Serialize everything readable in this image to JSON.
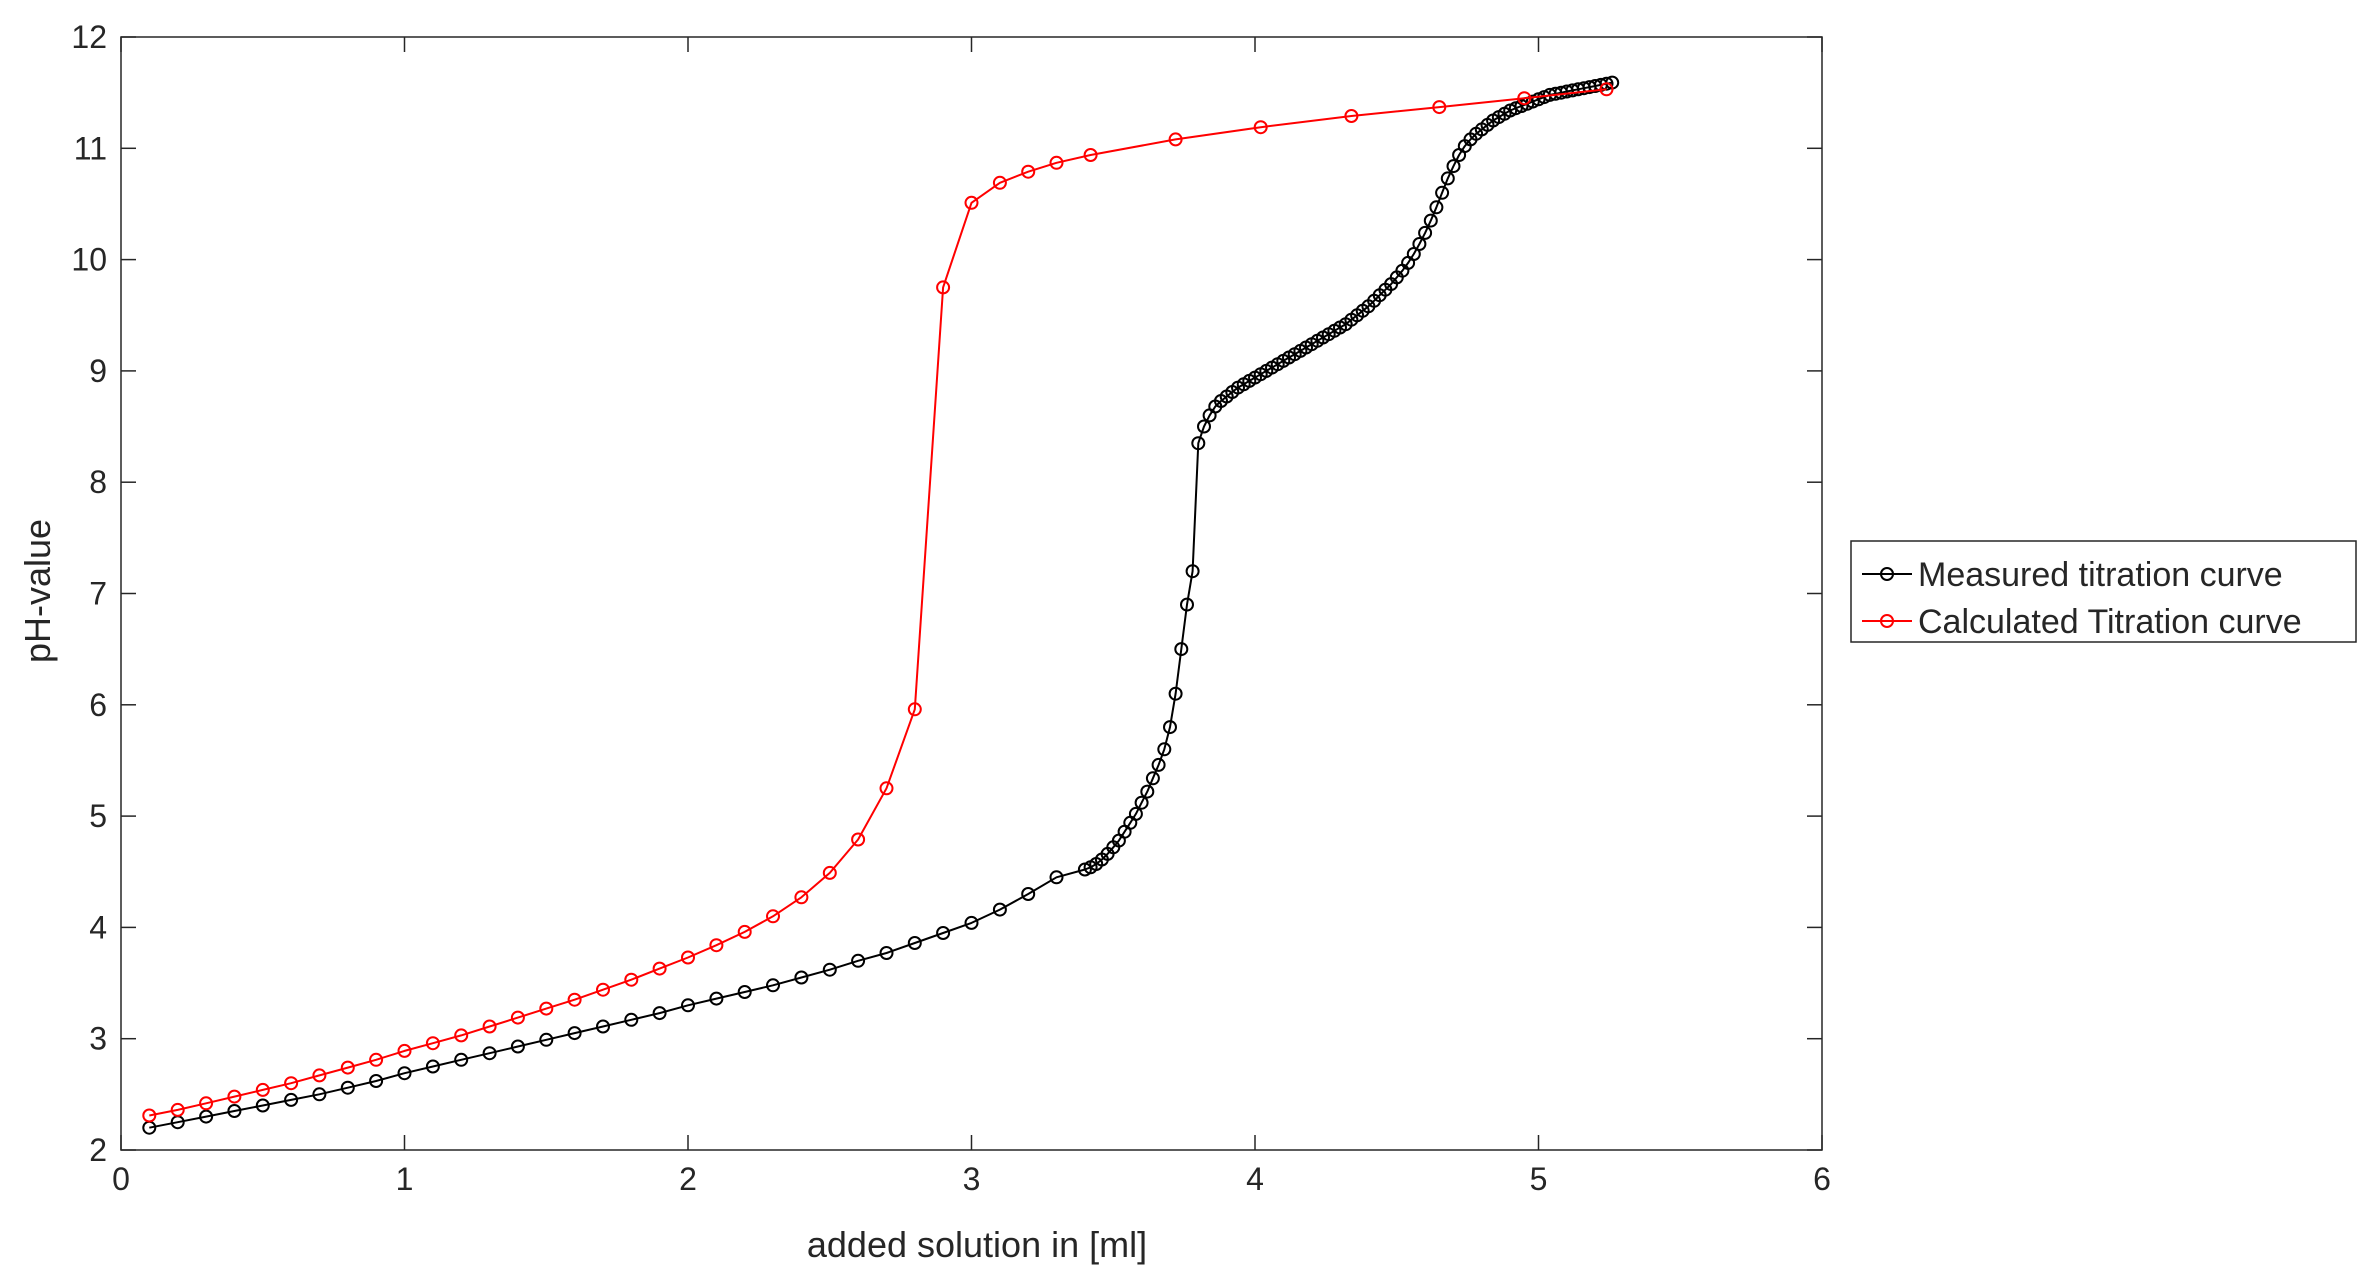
{
  "chart_data": {
    "type": "line",
    "title": "",
    "xlabel": "added solution in [ml]",
    "ylabel": "pH-value",
    "xlim": [
      0,
      6
    ],
    "ylim": [
      2,
      12
    ],
    "xticks": [
      0,
      1,
      2,
      3,
      4,
      5,
      6
    ],
    "yticks": [
      2,
      3,
      4,
      5,
      6,
      7,
      8,
      9,
      10,
      11,
      12
    ],
    "grid": false,
    "legend_position": "outside-right",
    "marker": "circle",
    "series": [
      {
        "name": "Measured titration curve",
        "color": "#000000",
        "x": [
          0.1,
          0.2,
          0.3,
          0.4,
          0.5,
          0.6,
          0.7,
          0.8,
          0.9,
          1.0,
          1.1,
          1.2,
          1.3,
          1.4,
          1.5,
          1.6,
          1.7,
          1.8,
          1.9,
          2.0,
          2.1,
          2.2,
          2.3,
          2.4,
          2.5,
          2.6,
          2.7,
          2.8,
          2.9,
          3.0,
          3.1,
          3.2,
          3.3,
          3.4,
          3.42,
          3.44,
          3.46,
          3.48,
          3.5,
          3.52,
          3.54,
          3.56,
          3.58,
          3.6,
          3.62,
          3.64,
          3.66,
          3.68,
          3.7,
          3.72,
          3.74,
          3.76,
          3.78,
          3.8,
          3.82,
          3.84,
          3.86,
          3.88,
          3.9,
          3.92,
          3.94,
          3.96,
          3.98,
          4.0,
          4.02,
          4.04,
          4.06,
          4.08,
          4.1,
          4.12,
          4.14,
          4.16,
          4.18,
          4.2,
          4.22,
          4.24,
          4.26,
          4.28,
          4.3,
          4.32,
          4.34,
          4.36,
          4.38,
          4.4,
          4.42,
          4.44,
          4.46,
          4.48,
          4.5,
          4.52,
          4.54,
          4.56,
          4.58,
          4.6,
          4.62,
          4.64,
          4.66,
          4.68,
          4.7,
          4.72,
          4.74,
          4.76,
          4.78,
          4.8,
          4.82,
          4.84,
          4.86,
          4.88,
          4.9,
          4.92,
          4.94,
          4.96,
          4.98,
          5.0,
          5.02,
          5.04,
          5.06,
          5.08,
          5.1,
          5.12,
          5.14,
          5.16,
          5.18,
          5.2,
          5.22,
          5.24,
          5.26
        ],
        "y": [
          2.2,
          2.25,
          2.3,
          2.35,
          2.4,
          2.45,
          2.5,
          2.56,
          2.62,
          2.69,
          2.75,
          2.81,
          2.87,
          2.93,
          2.99,
          3.05,
          3.11,
          3.17,
          3.23,
          3.3,
          3.36,
          3.42,
          3.48,
          3.55,
          3.62,
          3.7,
          3.77,
          3.86,
          3.95,
          4.04,
          4.16,
          4.3,
          4.45,
          4.52,
          4.54,
          4.57,
          4.61,
          4.66,
          4.72,
          4.78,
          4.86,
          4.94,
          5.02,
          5.12,
          5.22,
          5.34,
          5.46,
          5.6,
          5.8,
          6.1,
          6.5,
          6.9,
          7.2,
          8.35,
          8.5,
          8.6,
          8.68,
          8.73,
          8.77,
          8.81,
          8.85,
          8.88,
          8.91,
          8.94,
          8.97,
          9.0,
          9.03,
          9.06,
          9.09,
          9.12,
          9.15,
          9.18,
          9.21,
          9.24,
          9.27,
          9.3,
          9.33,
          9.36,
          9.39,
          9.42,
          9.46,
          9.5,
          9.54,
          9.58,
          9.63,
          9.68,
          9.73,
          9.78,
          9.84,
          9.9,
          9.97,
          10.05,
          10.14,
          10.24,
          10.35,
          10.47,
          10.6,
          10.73,
          10.84,
          10.94,
          11.02,
          11.08,
          11.13,
          11.17,
          11.21,
          11.25,
          11.28,
          11.31,
          11.34,
          11.36,
          11.38,
          11.4,
          11.42,
          11.44,
          11.46,
          11.48,
          11.49,
          11.5,
          11.51,
          11.52,
          11.53,
          11.54,
          11.55,
          11.56,
          11.57,
          11.58,
          11.59
        ]
      },
      {
        "name": "Calculated Titration curve",
        "color": "#ff0000",
        "x": [
          0.1,
          0.2,
          0.3,
          0.4,
          0.5,
          0.6,
          0.7,
          0.8,
          0.9,
          1.0,
          1.1,
          1.2,
          1.3,
          1.4,
          1.5,
          1.6,
          1.7,
          1.8,
          1.9,
          2.0,
          2.1,
          2.2,
          2.3,
          2.4,
          2.5,
          2.6,
          2.7,
          2.8,
          2.9,
          3.0,
          3.1,
          3.2,
          3.3,
          3.42,
          3.72,
          4.02,
          4.34,
          4.65,
          4.95,
          5.24
        ],
        "y": [
          2.31,
          2.36,
          2.42,
          2.48,
          2.54,
          2.6,
          2.67,
          2.74,
          2.81,
          2.89,
          2.96,
          3.03,
          3.11,
          3.19,
          3.27,
          3.35,
          3.44,
          3.53,
          3.63,
          3.73,
          3.84,
          3.96,
          4.1,
          4.27,
          4.49,
          4.79,
          5.25,
          5.96,
          9.75,
          10.51,
          10.69,
          10.79,
          10.87,
          10.94,
          11.08,
          11.19,
          11.29,
          11.37,
          11.45,
          11.53
        ]
      }
    ]
  }
}
